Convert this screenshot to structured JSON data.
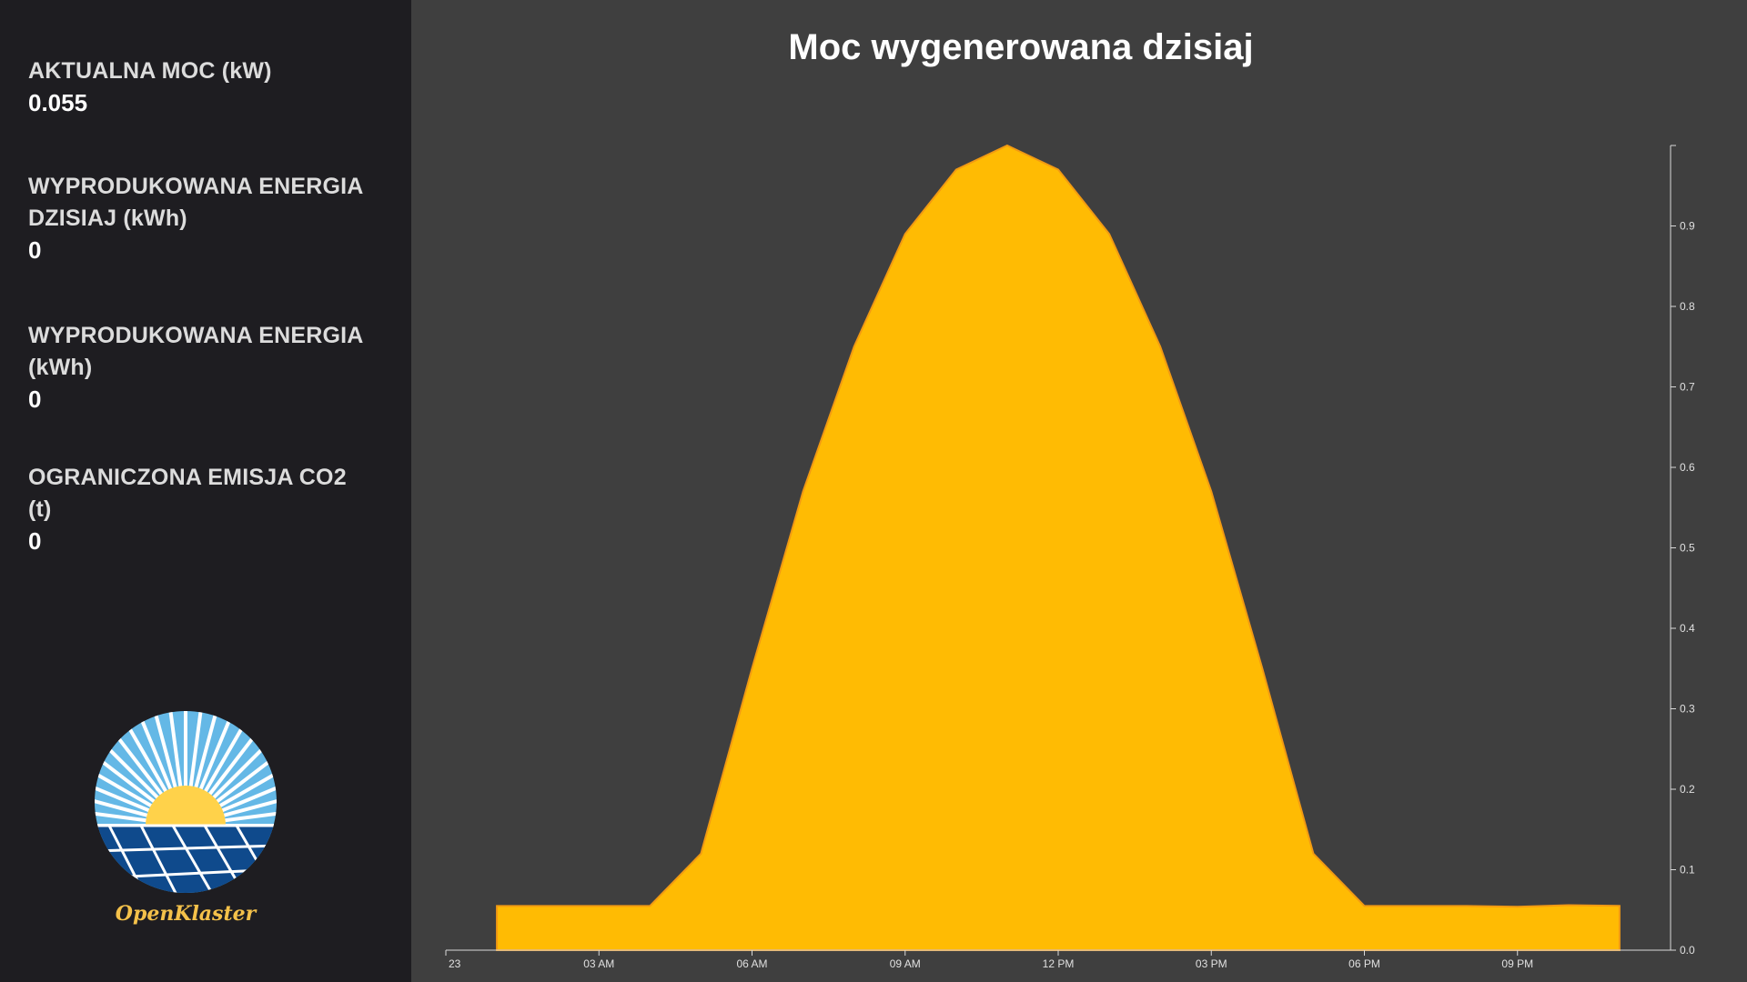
{
  "sidebar": {
    "stats": [
      {
        "label": "AKTUALNA MOC (kW)",
        "value": "0.055"
      },
      {
        "label": "WYPRODUKOWANA ENERGIA DZISIAJ (kWh)",
        "value": "0"
      },
      {
        "label": "WYPRODUKOWANA ENERGIA (kWh)",
        "value": "0"
      },
      {
        "label": "OGRANICZONA EMISJA CO2 (t)",
        "value": "0"
      }
    ],
    "logo": {
      "text": "OpenKlaster",
      "icon": "sun-solar-panel-logo-icon"
    }
  },
  "colors": {
    "area_fill": "#ffbb03",
    "area_stroke": "#f29a12",
    "axis": "#d9d9d9",
    "sidebar_bg": "#1e1d21",
    "main_bg": "#3f3f3f"
  },
  "chart_data": {
    "type": "area",
    "title": "Moc wygenerowana dzisiaj",
    "xlabel": "",
    "ylabel": "",
    "x_tick_labels": [
      "23",
      "03 AM",
      "06 AM",
      "09 AM",
      "12 PM",
      "03 PM",
      "06 PM",
      "09 PM"
    ],
    "y_tick_labels": [
      "0.0",
      "0.1",
      "0.2",
      "0.3",
      "0.4",
      "0.5",
      "0.6",
      "0.7",
      "0.8",
      "0.9"
    ],
    "y_axis_position": "right",
    "ylim": [
      0,
      1.0
    ],
    "xlim_hours": [
      0,
      24
    ],
    "x": [
      1,
      2,
      3,
      4,
      5,
      6,
      7,
      8,
      9,
      10,
      11,
      12,
      13,
      14,
      15,
      16,
      17,
      18,
      19,
      20,
      21,
      22,
      23
    ],
    "values": [
      0.055,
      0.055,
      0.055,
      0.055,
      0.12,
      0.35,
      0.57,
      0.75,
      0.89,
      0.97,
      1.0,
      0.97,
      0.89,
      0.75,
      0.57,
      0.35,
      0.12,
      0.055,
      0.055,
      0.055,
      0.054,
      0.056,
      0.055
    ],
    "grid": false,
    "legend": "none"
  }
}
